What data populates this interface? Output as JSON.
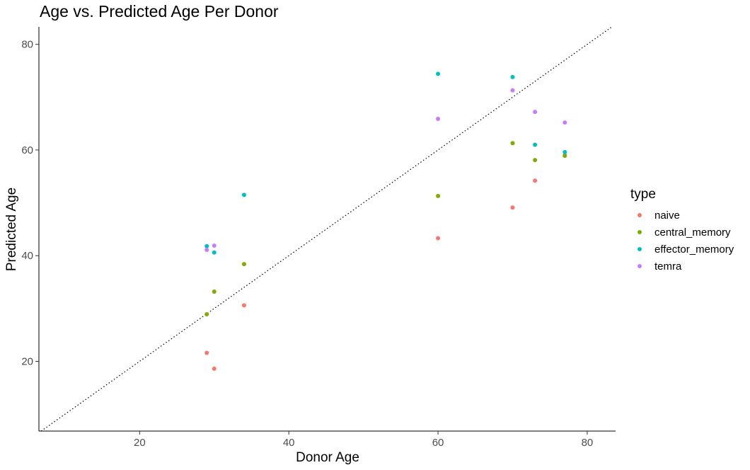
{
  "chart_data": {
    "type": "scatter",
    "title": "Age vs. Predicted Age Per Donor",
    "xlabel": "Donor Age",
    "ylabel": "Predicted Age",
    "xlim": [
      6.5,
      83.8
    ],
    "ylim": [
      6.8,
      83.3
    ],
    "x_ticks": [
      20,
      40,
      60,
      80
    ],
    "y_ticks": [
      20,
      40,
      60,
      80
    ],
    "grid": false,
    "reference_line": "y = x (dotted)",
    "legend": {
      "title": "type",
      "placement": "right"
    },
    "series": [
      {
        "name": "naive",
        "color": "#F8766D",
        "points": [
          [
            29,
            21.6
          ],
          [
            30,
            18.6
          ],
          [
            34,
            30.6
          ],
          [
            60,
            43.3
          ],
          [
            70,
            49.1
          ],
          [
            73,
            54.2
          ],
          [
            77,
            59.0
          ]
        ]
      },
      {
        "name": "central_memory",
        "color": "#7CAE00",
        "points": [
          [
            29,
            28.9
          ],
          [
            30,
            33.2
          ],
          [
            34,
            38.4
          ],
          [
            60,
            51.3
          ],
          [
            70,
            61.3
          ],
          [
            73,
            58.1
          ],
          [
            77,
            58.9
          ]
        ]
      },
      {
        "name": "effector_memory",
        "color": "#00BFC4",
        "points": [
          [
            29,
            41.8
          ],
          [
            30,
            40.6
          ],
          [
            34,
            51.5
          ],
          [
            60,
            74.4
          ],
          [
            70,
            73.8
          ],
          [
            73,
            61.0
          ],
          [
            77,
            59.6
          ]
        ]
      },
      {
        "name": "temra",
        "color": "#C77CFF",
        "points": [
          [
            29,
            41.1
          ],
          [
            30,
            41.9
          ],
          [
            60,
            65.9
          ],
          [
            70,
            71.3
          ],
          [
            73,
            67.2
          ],
          [
            77,
            65.2
          ]
        ]
      }
    ]
  }
}
